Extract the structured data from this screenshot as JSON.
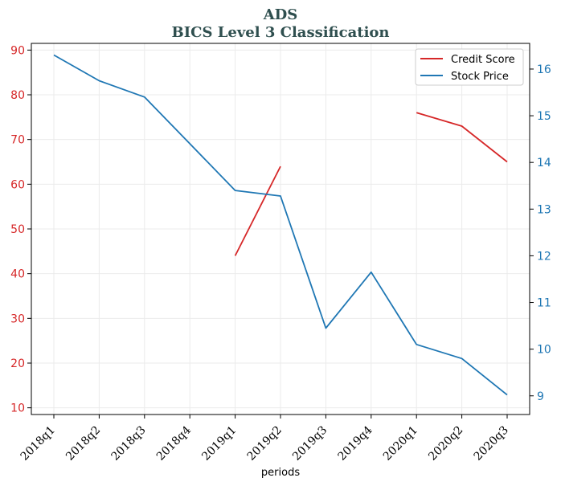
{
  "chart_data": {
    "type": "line",
    "title": "ADS",
    "subtitle": "BICS Level 3 Classification",
    "xlabel": "periods",
    "categories": [
      "2018q1",
      "2018q2",
      "2018q3",
      "2018q4",
      "2019q1",
      "2019q2",
      "2019q3",
      "2019q4",
      "2020q1",
      "2020q2",
      "2020q3"
    ],
    "y_left": {
      "ylim": [
        8.5,
        91.5
      ],
      "ticks": [
        10,
        20,
        30,
        40,
        50,
        60,
        70,
        80,
        90
      ],
      "color": "#d62728"
    },
    "y_right": {
      "ylim": [
        8.6,
        16.55
      ],
      "ticks": [
        9,
        10,
        11,
        12,
        13,
        14,
        15,
        16
      ],
      "color": "#1f77b4"
    },
    "grid": true,
    "legend_position": "top-right",
    "series": [
      {
        "name": "Credit Score",
        "axis": "left",
        "color": "#d62728",
        "values": [
          null,
          null,
          null,
          null,
          44,
          64,
          null,
          null,
          76,
          73,
          65
        ]
      },
      {
        "name": "Stock Price",
        "axis": "right",
        "color": "#1f77b4",
        "values": [
          16.3,
          15.75,
          15.4,
          14.4,
          13.4,
          13.28,
          10.45,
          11.65,
          10.1,
          9.8,
          9.02
        ]
      }
    ]
  }
}
